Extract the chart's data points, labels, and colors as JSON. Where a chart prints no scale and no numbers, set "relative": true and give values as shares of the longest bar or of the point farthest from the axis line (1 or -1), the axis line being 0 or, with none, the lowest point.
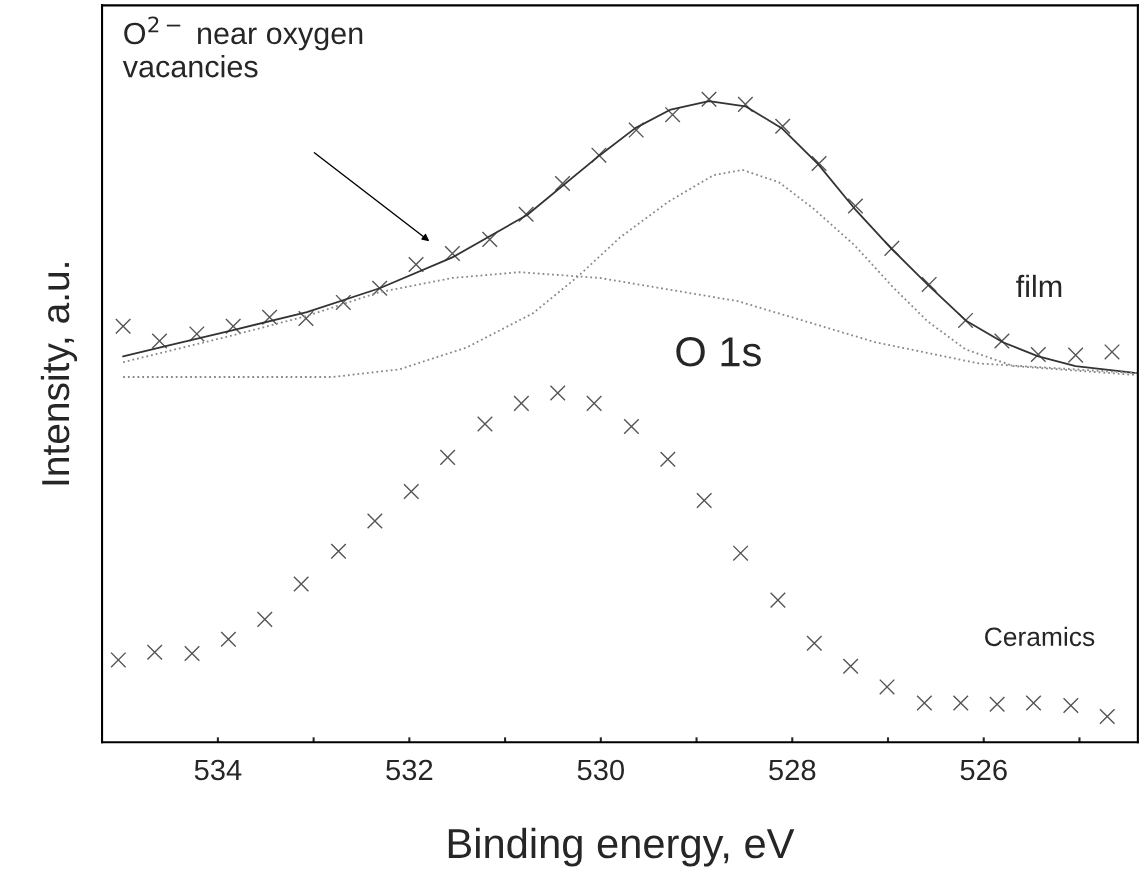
{
  "chart_data": {
    "type": "scatter",
    "relative": true,
    "xlabel": "Binding energy, eV",
    "ylabel": "Intensity, a.u.",
    "xlim": [
      535.21,
      524.39
    ],
    "xticks": [
      534,
      {
        "value": 533,
        "label": null
      },
      532,
      {
        "value": 531,
        "label": null
      },
      530,
      {
        "value": 529,
        "label": null
      },
      528,
      {
        "value": 527,
        "label": null
      },
      526,
      {
        "value": 525,
        "label": null
      }
    ],
    "tick_labels": "x",
    "grid": false,
    "legend": false,
    "series": [
      {
        "marker": "cross",
        "color": "#555555",
        "x": [
          534.99,
          534.61,
          534.22,
          533.84,
          533.46,
          533.08,
          532.69,
          532.31,
          531.93,
          531.55,
          531.16,
          530.78,
          530.4,
          530.02,
          529.63,
          529.25,
          528.87,
          528.49,
          528.1,
          527.72,
          527.34,
          526.96,
          526.57,
          526.19,
          525.81,
          525.43,
          525.04,
          524.66
        ],
        "values": [
          0.647,
          0.624,
          0.635,
          0.647,
          0.661,
          0.659,
          0.684,
          0.706,
          0.743,
          0.76,
          0.782,
          0.821,
          0.869,
          0.913,
          0.952,
          0.976,
          1.0,
          0.992,
          0.958,
          0.9,
          0.834,
          0.768,
          0.712,
          0.656,
          0.624,
          0.603,
          0.602,
          0.607
        ]
      },
      {
        "marker": "cross",
        "color": "#555555",
        "x": [
          535.04,
          534.66,
          534.27,
          533.89,
          533.51,
          533.13,
          532.74,
          532.36,
          531.98,
          531.6,
          531.21,
          530.83,
          530.45,
          530.07,
          529.68,
          529.3,
          528.92,
          528.54,
          528.15,
          527.77,
          527.39,
          527.01,
          526.62,
          526.24,
          525.86,
          525.48,
          525.09,
          524.71
        ],
        "values": [
          0.128,
          0.14,
          0.138,
          0.16,
          0.191,
          0.246,
          0.297,
          0.344,
          0.39,
          0.443,
          0.495,
          0.527,
          0.543,
          0.527,
          0.491,
          0.44,
          0.376,
          0.294,
          0.221,
          0.154,
          0.118,
          0.086,
          0.061,
          0.061,
          0.059,
          0.061,
          0.057,
          0.04
        ]
      },
      {
        "type": "line",
        "line_style": "solid",
        "color": "#333333",
        "x": [
          534.99,
          534.6,
          533.84,
          533.07,
          532.31,
          531.55,
          530.77,
          530.01,
          529.64,
          529.27,
          528.87,
          528.49,
          528.11,
          527.73,
          527.35,
          526.96,
          526.58,
          526.18,
          525.8,
          525.43,
          525.04,
          524.4
        ],
        "values": [
          0.6,
          0.614,
          0.641,
          0.669,
          0.706,
          0.754,
          0.82,
          0.913,
          0.955,
          0.984,
          0.997,
          0.989,
          0.955,
          0.899,
          0.83,
          0.767,
          0.711,
          0.655,
          0.622,
          0.6,
          0.585,
          0.574
        ]
      },
      {
        "type": "line",
        "line_style": "dotted",
        "color": "#888888",
        "x": [
          534.99,
          533.84,
          533.07,
          532.31,
          531.55,
          530.85,
          530.01,
          528.57,
          527.13,
          526.05,
          524.4
        ],
        "values": [
          0.591,
          0.633,
          0.663,
          0.7,
          0.722,
          0.731,
          0.722,
          0.686,
          0.622,
          0.589,
          0.574
        ]
      },
      {
        "type": "line",
        "line_style": "dotted",
        "color": "#888888",
        "x": [
          534.99,
          532.8,
          532.1,
          531.4,
          530.71,
          530.25,
          529.8,
          529.29,
          528.82,
          528.52,
          528.14,
          527.78,
          527.35,
          526.95,
          526.59,
          526.19,
          525.69,
          524.4
        ],
        "values": [
          0.568,
          0.568,
          0.58,
          0.614,
          0.667,
          0.723,
          0.785,
          0.841,
          0.882,
          0.89,
          0.871,
          0.83,
          0.773,
          0.708,
          0.655,
          0.611,
          0.585,
          0.571
        ]
      }
    ],
    "annotations": [
      "O$^{2−}$ near oxygen\nvacancies",
      "O 1s",
      "film",
      "Ceramics"
    ]
  }
}
